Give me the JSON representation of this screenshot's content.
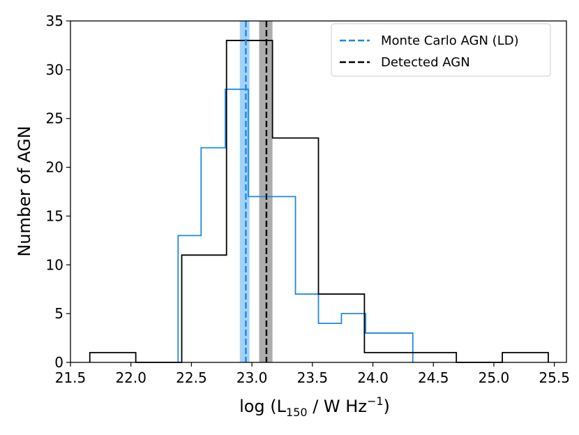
{
  "chart_data": {
    "type": "histogram",
    "xlim": [
      21.5,
      25.6
    ],
    "ylim": [
      0,
      35
    ],
    "xticks": [
      "21.5",
      "22.0",
      "22.5",
      "23.0",
      "23.5",
      "24.0",
      "24.5",
      "25.0",
      "25.5"
    ],
    "yticks": [
      "0",
      "5",
      "10",
      "15",
      "20",
      "25",
      "30",
      "35"
    ],
    "xlabel": {
      "prefix": "log (L",
      "sub": "150",
      "middle": " / W Hz",
      "sup": "−1",
      "suffix": ")"
    },
    "ylabel": "Number of AGN",
    "legend_position": "top-right",
    "series": [
      {
        "name": "Monte Carlo AGN (LD)",
        "color": "#1e88e5",
        "bins": [
          {
            "x0": 22.39,
            "x1": 22.58,
            "count": 13
          },
          {
            "x0": 22.58,
            "x1": 22.78,
            "count": 22
          },
          {
            "x0": 22.78,
            "x1": 22.97,
            "count": 28
          },
          {
            "x0": 22.97,
            "x1": 23.16,
            "count": 17
          },
          {
            "x0": 23.16,
            "x1": 23.36,
            "count": 17
          },
          {
            "x0": 23.36,
            "x1": 23.55,
            "count": 7
          },
          {
            "x0": 23.55,
            "x1": 23.74,
            "count": 4
          },
          {
            "x0": 23.74,
            "x1": 23.94,
            "count": 5
          },
          {
            "x0": 23.94,
            "x1": 24.13,
            "count": 3
          },
          {
            "x0": 24.13,
            "x1": 24.33,
            "count": 3
          }
        ],
        "marker_line": 22.95,
        "band": [
          22.9,
          22.98
        ]
      },
      {
        "name": "Detected AGN",
        "color": "#000000",
        "bins": [
          {
            "x0": 21.66,
            "x1": 22.04,
            "count": 1
          },
          {
            "x0": 22.04,
            "x1": 22.42,
            "count": 0
          },
          {
            "x0": 22.42,
            "x1": 22.79,
            "count": 11
          },
          {
            "x0": 22.79,
            "x1": 23.17,
            "count": 33
          },
          {
            "x0": 23.17,
            "x1": 23.55,
            "count": 23
          },
          {
            "x0": 23.55,
            "x1": 23.93,
            "count": 7
          },
          {
            "x0": 23.93,
            "x1": 24.31,
            "count": 1
          },
          {
            "x0": 24.31,
            "x1": 24.69,
            "count": 1
          },
          {
            "x0": 24.69,
            "x1": 25.07,
            "count": 0
          },
          {
            "x0": 25.07,
            "x1": 25.45,
            "count": 1
          }
        ],
        "marker_line": 23.12,
        "band": [
          23.06,
          23.17
        ]
      }
    ]
  }
}
